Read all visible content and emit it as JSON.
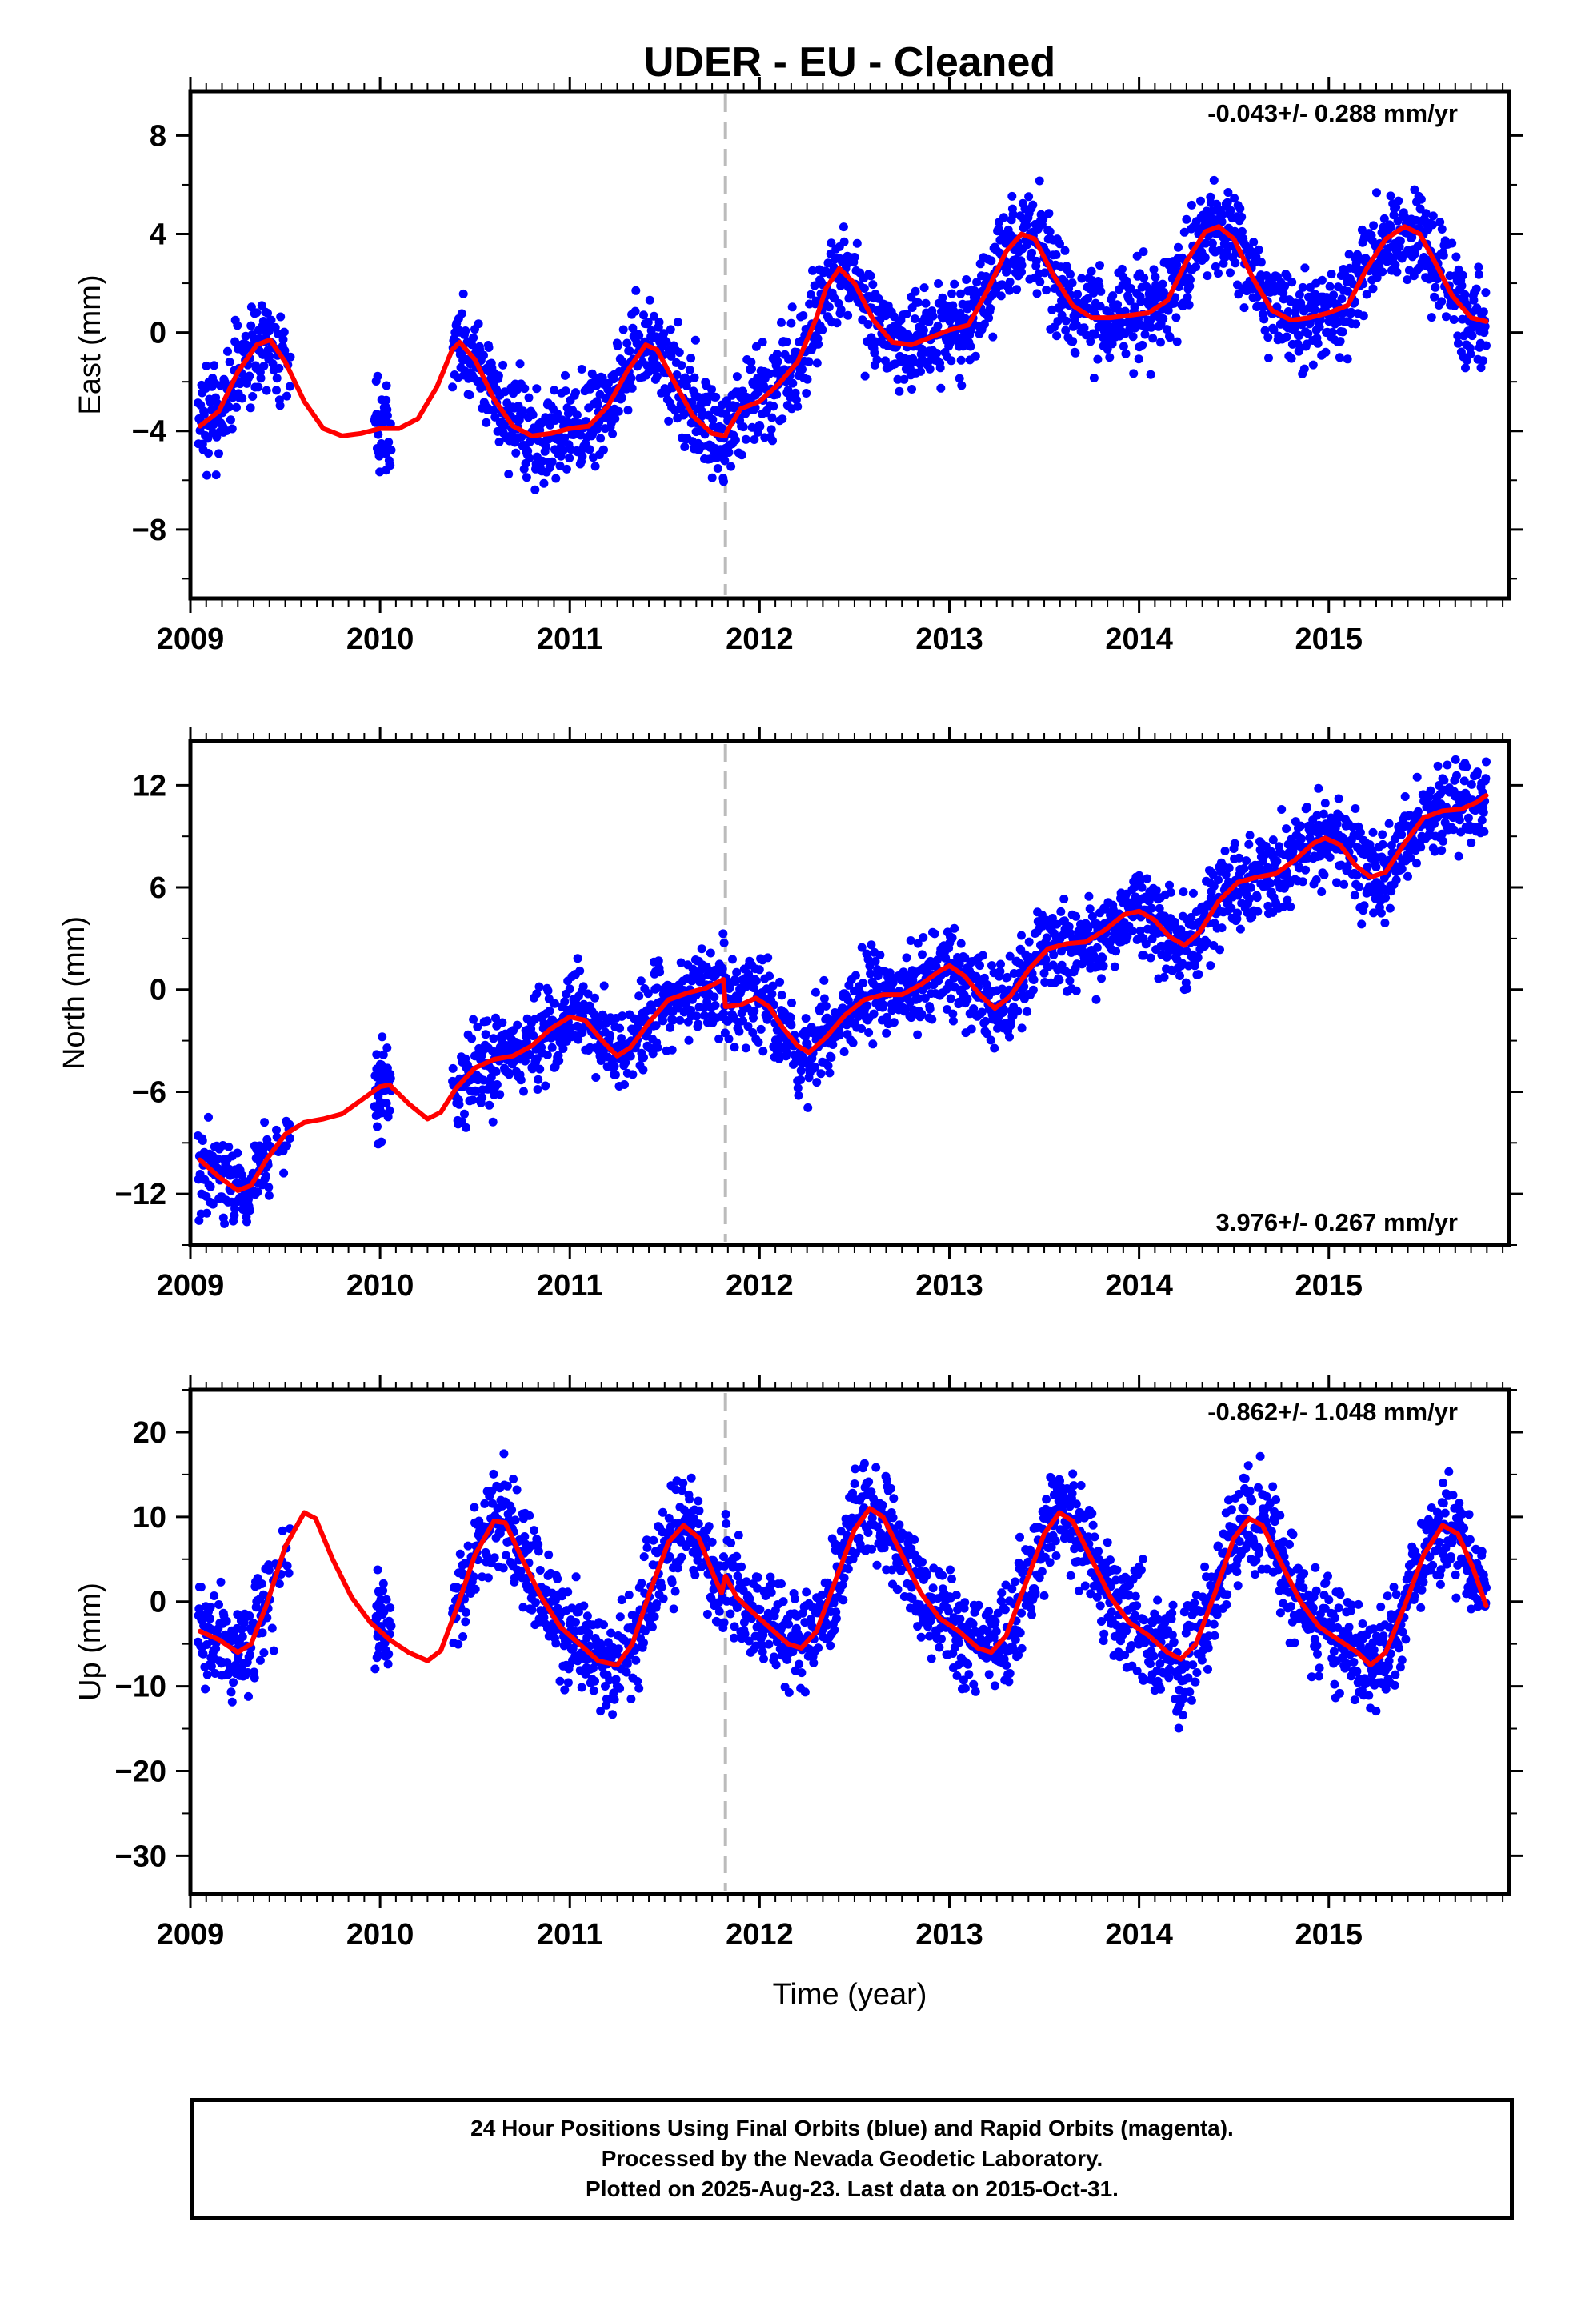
{
  "title": "UDER  - EU - Cleaned",
  "x_axis_label": "Time (year)",
  "footer": {
    "line1": "24 Hour Positions Using Final Orbits (blue) and Rapid Orbits (magenta).",
    "line2": "Processed by the Nevada Geodetic Laboratory.",
    "line3": "Plotted on 2025-Aug-23. Last data on 2015-Oct-31."
  },
  "colors": {
    "points": "#0000ff",
    "fit": "#ff0000",
    "break_line": "#bbbbbb"
  },
  "chart_data": [
    {
      "type": "scatter",
      "component": "east",
      "ylabel": "East (mm)",
      "rate": "-0.043+/- 0.288 mm/yr",
      "rate_position": "top-right",
      "xlim": [
        2009.0,
        2015.95
      ],
      "ylim": [
        -10.8,
        9.8
      ],
      "yticks": [
        -8,
        -4,
        0,
        4,
        8
      ],
      "yticklabels": [
        "−8",
        "−4",
        "0",
        "4",
        "8"
      ],
      "xticks": [
        2009,
        2010,
        2011,
        2012,
        2013,
        2014,
        2015
      ],
      "break_epoch": 2011.82,
      "fit": [
        [
          2009.05,
          -3.8
        ],
        [
          2009.15,
          -3.2
        ],
        [
          2009.25,
          -1.6
        ],
        [
          2009.35,
          -0.5
        ],
        [
          2009.42,
          -0.3
        ],
        [
          2009.5,
          -1.2
        ],
        [
          2009.6,
          -2.8
        ],
        [
          2009.7,
          -3.9
        ],
        [
          2009.8,
          -4.2
        ],
        [
          2009.9,
          -4.1
        ],
        [
          2010.0,
          -3.9
        ],
        [
          2010.1,
          -3.9
        ],
        [
          2010.2,
          -3.5
        ],
        [
          2010.3,
          -2.2
        ],
        [
          2010.38,
          -0.7
        ],
        [
          2010.42,
          -0.4
        ],
        [
          2010.5,
          -1.1
        ],
        [
          2010.6,
          -2.7
        ],
        [
          2010.7,
          -3.8
        ],
        [
          2010.8,
          -4.2
        ],
        [
          2010.9,
          -4.1
        ],
        [
          2011.0,
          -3.9
        ],
        [
          2011.1,
          -3.8
        ],
        [
          2011.2,
          -3.0
        ],
        [
          2011.3,
          -1.6
        ],
        [
          2011.4,
          -0.5
        ],
        [
          2011.46,
          -0.7
        ],
        [
          2011.55,
          -2.0
        ],
        [
          2011.65,
          -3.4
        ],
        [
          2011.75,
          -4.1
        ],
        [
          2011.82,
          -4.2
        ],
        [
          2011.83,
          -4.0
        ],
        [
          2011.9,
          -3.1
        ],
        [
          2012.0,
          -2.8
        ],
        [
          2012.1,
          -2.1
        ],
        [
          2012.2,
          -1.2
        ],
        [
          2012.3,
          0.6
        ],
        [
          2012.35,
          1.8
        ],
        [
          2012.42,
          2.6
        ],
        [
          2012.5,
          2.0
        ],
        [
          2012.6,
          0.5
        ],
        [
          2012.7,
          -0.4
        ],
        [
          2012.8,
          -0.5
        ],
        [
          2012.9,
          -0.2
        ],
        [
          2013.0,
          0.1
        ],
        [
          2013.1,
          0.3
        ],
        [
          2013.2,
          1.7
        ],
        [
          2013.3,
          3.3
        ],
        [
          2013.38,
          4.0
        ],
        [
          2013.45,
          3.8
        ],
        [
          2013.55,
          2.3
        ],
        [
          2013.65,
          1.1
        ],
        [
          2013.75,
          0.6
        ],
        [
          2013.85,
          0.6
        ],
        [
          2013.95,
          0.7
        ],
        [
          2014.05,
          0.8
        ],
        [
          2014.15,
          1.3
        ],
        [
          2014.25,
          2.9
        ],
        [
          2014.35,
          4.1
        ],
        [
          2014.42,
          4.3
        ],
        [
          2014.5,
          3.8
        ],
        [
          2014.6,
          2.2
        ],
        [
          2014.7,
          0.9
        ],
        [
          2014.8,
          0.5
        ],
        [
          2014.9,
          0.6
        ],
        [
          2015.0,
          0.8
        ],
        [
          2015.1,
          1.1
        ],
        [
          2015.2,
          2.6
        ],
        [
          2015.3,
          3.8
        ],
        [
          2015.4,
          4.3
        ],
        [
          2015.48,
          4.0
        ],
        [
          2015.55,
          3.0
        ],
        [
          2015.65,
          1.5
        ],
        [
          2015.75,
          0.6
        ],
        [
          2015.83,
          0.45
        ]
      ]
    },
    {
      "type": "scatter",
      "component": "north",
      "ylabel": "North (mm)",
      "rate": "3.976+/- 0.267 mm/yr",
      "rate_position": "bottom-right",
      "xlim": [
        2009.0,
        2015.95
      ],
      "ylim": [
        -15.0,
        14.6
      ],
      "yticks": [
        -12,
        -6,
        0,
        6,
        12
      ],
      "yticklabels": [
        "−12",
        "−6",
        "0",
        "6",
        "12"
      ],
      "xticks": [
        2009,
        2010,
        2011,
        2012,
        2013,
        2014,
        2015
      ],
      "break_epoch": 2011.82,
      "fit": [
        [
          2009.05,
          -10.0
        ],
        [
          2009.15,
          -11.0
        ],
        [
          2009.25,
          -11.8
        ],
        [
          2009.32,
          -11.5
        ],
        [
          2009.4,
          -10.0
        ],
        [
          2009.5,
          -8.5
        ],
        [
          2009.6,
          -7.8
        ],
        [
          2009.7,
          -7.6
        ],
        [
          2009.8,
          -7.3
        ],
        [
          2009.9,
          -6.5
        ],
        [
          2010.0,
          -5.7
        ],
        [
          2010.05,
          -5.6
        ],
        [
          2010.15,
          -6.7
        ],
        [
          2010.25,
          -7.6
        ],
        [
          2010.32,
          -7.2
        ],
        [
          2010.4,
          -5.8
        ],
        [
          2010.5,
          -4.6
        ],
        [
          2010.6,
          -4.1
        ],
        [
          2010.7,
          -3.9
        ],
        [
          2010.8,
          -3.3
        ],
        [
          2010.9,
          -2.3
        ],
        [
          2011.0,
          -1.6
        ],
        [
          2011.08,
          -1.8
        ],
        [
          2011.17,
          -3.0
        ],
        [
          2011.25,
          -3.9
        ],
        [
          2011.32,
          -3.4
        ],
        [
          2011.42,
          -1.9
        ],
        [
          2011.52,
          -0.6
        ],
        [
          2011.62,
          -0.2
        ],
        [
          2011.72,
          0.1
        ],
        [
          2011.81,
          0.6
        ],
        [
          2011.82,
          -1.0
        ],
        [
          2011.9,
          -0.9
        ],
        [
          2011.98,
          -0.5
        ],
        [
          2012.05,
          -1.0
        ],
        [
          2012.12,
          -2.2
        ],
        [
          2012.2,
          -3.3
        ],
        [
          2012.26,
          -3.7
        ],
        [
          2012.35,
          -2.8
        ],
        [
          2012.45,
          -1.5
        ],
        [
          2012.55,
          -0.6
        ],
        [
          2012.65,
          -0.3
        ],
        [
          2012.75,
          -0.3
        ],
        [
          2012.85,
          0.3
        ],
        [
          2012.95,
          1.1
        ],
        [
          2013.0,
          1.4
        ],
        [
          2013.08,
          0.8
        ],
        [
          2013.16,
          -0.3
        ],
        [
          2013.24,
          -1.1
        ],
        [
          2013.32,
          -0.4
        ],
        [
          2013.42,
          1.2
        ],
        [
          2013.52,
          2.4
        ],
        [
          2013.62,
          2.7
        ],
        [
          2013.72,
          2.8
        ],
        [
          2013.82,
          3.5
        ],
        [
          2013.92,
          4.4
        ],
        [
          2014.0,
          4.6
        ],
        [
          2014.08,
          4.1
        ],
        [
          2014.16,
          3.1
        ],
        [
          2014.24,
          2.6
        ],
        [
          2014.32,
          3.4
        ],
        [
          2014.42,
          5.2
        ],
        [
          2014.52,
          6.3
        ],
        [
          2014.62,
          6.6
        ],
        [
          2014.72,
          6.8
        ],
        [
          2014.82,
          7.6
        ],
        [
          2014.92,
          8.6
        ],
        [
          2014.98,
          8.9
        ],
        [
          2015.06,
          8.5
        ],
        [
          2015.14,
          7.3
        ],
        [
          2015.22,
          6.6
        ],
        [
          2015.3,
          6.9
        ],
        [
          2015.4,
          8.6
        ],
        [
          2015.5,
          10.1
        ],
        [
          2015.6,
          10.5
        ],
        [
          2015.7,
          10.6
        ],
        [
          2015.78,
          11.0
        ],
        [
          2015.83,
          11.4
        ]
      ]
    },
    {
      "type": "scatter",
      "component": "up",
      "ylabel": "Up (mm)",
      "rate": "-0.862+/- 1.048 mm/yr",
      "rate_position": "top-right",
      "xlim": [
        2009.0,
        2015.95
      ],
      "ylim": [
        -34.5,
        25.0
      ],
      "yticks": [
        -30,
        -20,
        -10,
        0,
        10,
        20
      ],
      "yticklabels": [
        "−30",
        "−20",
        "−10",
        "0",
        "10",
        "20"
      ],
      "xticks": [
        2009,
        2010,
        2011,
        2012,
        2013,
        2014,
        2015
      ],
      "break_epoch": 2011.82,
      "fit": [
        [
          2009.05,
          -3.5
        ],
        [
          2009.15,
          -4.5
        ],
        [
          2009.25,
          -6.0
        ],
        [
          2009.32,
          -5.0
        ],
        [
          2009.4,
          -0.5
        ],
        [
          2009.5,
          6.5
        ],
        [
          2009.6,
          10.5
        ],
        [
          2009.66,
          9.8
        ],
        [
          2009.75,
          5.0
        ],
        [
          2009.85,
          0.5
        ],
        [
          2009.95,
          -2.5
        ],
        [
          2010.05,
          -4.5
        ],
        [
          2010.15,
          -6.0
        ],
        [
          2010.25,
          -7.0
        ],
        [
          2010.32,
          -5.8
        ],
        [
          2010.4,
          -1.0
        ],
        [
          2010.5,
          5.5
        ],
        [
          2010.6,
          9.5
        ],
        [
          2010.66,
          9.3
        ],
        [
          2010.75,
          5.0
        ],
        [
          2010.85,
          0.5
        ],
        [
          2010.95,
          -3.0
        ],
        [
          2011.05,
          -5.0
        ],
        [
          2011.15,
          -7.0
        ],
        [
          2011.25,
          -7.5
        ],
        [
          2011.33,
          -5.0
        ],
        [
          2011.42,
          1.0
        ],
        [
          2011.52,
          7.0
        ],
        [
          2011.6,
          9.0
        ],
        [
          2011.68,
          7.5
        ],
        [
          2011.76,
          3.0
        ],
        [
          2011.8,
          1.0
        ],
        [
          2011.82,
          3.0
        ],
        [
          2011.88,
          0.5
        ],
        [
          2011.95,
          -1.0
        ],
        [
          2012.05,
          -3.0
        ],
        [
          2012.15,
          -5.0
        ],
        [
          2012.22,
          -5.5
        ],
        [
          2012.3,
          -3.5
        ],
        [
          2012.4,
          2.5
        ],
        [
          2012.5,
          8.5
        ],
        [
          2012.58,
          11.0
        ],
        [
          2012.65,
          10.0
        ],
        [
          2012.75,
          5.5
        ],
        [
          2012.85,
          1.0
        ],
        [
          2012.95,
          -2.0
        ],
        [
          2013.05,
          -3.5
        ],
        [
          2013.15,
          -5.5
        ],
        [
          2013.22,
          -6.0
        ],
        [
          2013.3,
          -4.0
        ],
        [
          2013.4,
          2.0
        ],
        [
          2013.5,
          8.0
        ],
        [
          2013.58,
          10.5
        ],
        [
          2013.65,
          9.5
        ],
        [
          2013.75,
          5.0
        ],
        [
          2013.85,
          0.5
        ],
        [
          2013.95,
          -2.5
        ],
        [
          2014.05,
          -4.0
        ],
        [
          2014.15,
          -6.0
        ],
        [
          2014.22,
          -6.8
        ],
        [
          2014.3,
          -5.0
        ],
        [
          2014.4,
          1.0
        ],
        [
          2014.5,
          7.5
        ],
        [
          2014.58,
          9.8
        ],
        [
          2014.65,
          9.0
        ],
        [
          2014.75,
          4.5
        ],
        [
          2014.85,
          0.0
        ],
        [
          2014.95,
          -3.0
        ],
        [
          2015.05,
          -4.5
        ],
        [
          2015.15,
          -6.0
        ],
        [
          2015.22,
          -7.5
        ],
        [
          2015.3,
          -6.0
        ],
        [
          2015.4,
          -0.5
        ],
        [
          2015.5,
          5.5
        ],
        [
          2015.6,
          9.0
        ],
        [
          2015.68,
          8.0
        ],
        [
          2015.76,
          4.0
        ],
        [
          2015.83,
          -0.5
        ]
      ]
    }
  ]
}
